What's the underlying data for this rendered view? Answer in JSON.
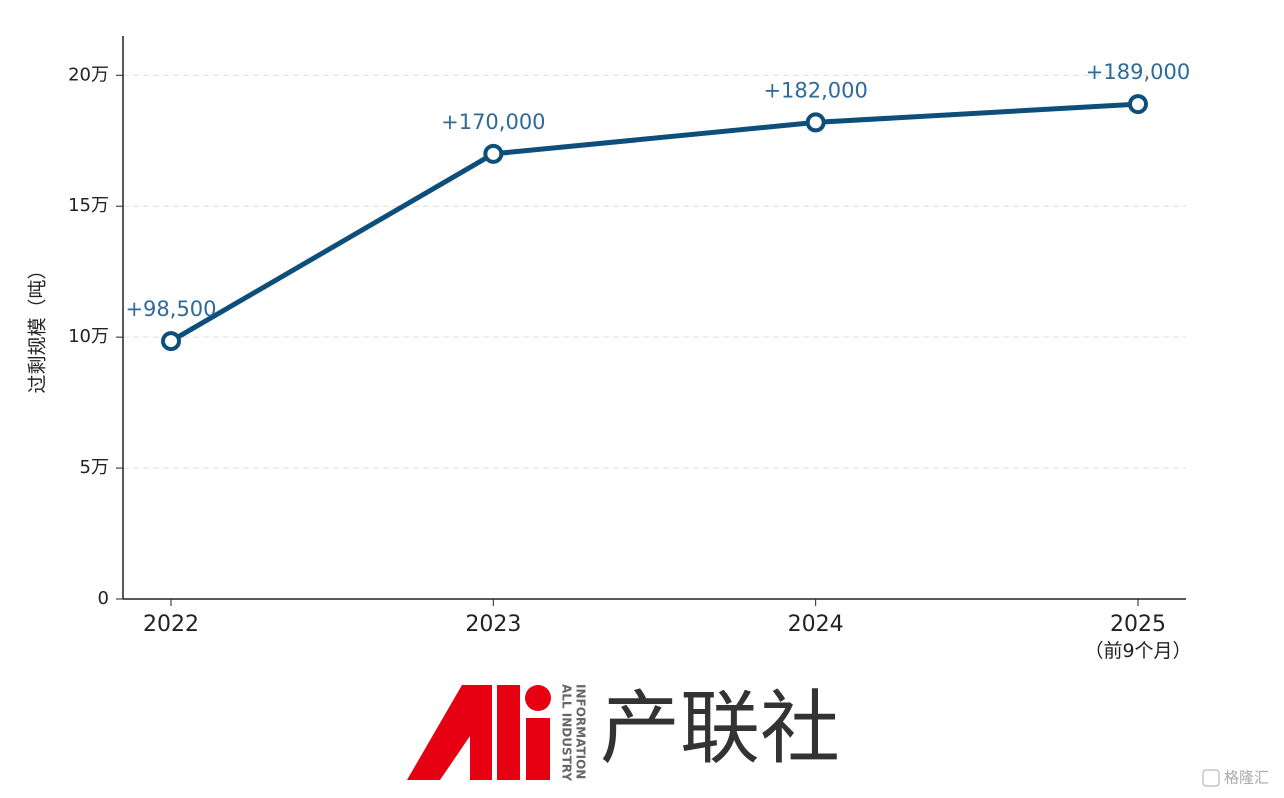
{
  "chart_data": {
    "type": "line",
    "y_label": "过剩规模（吨）",
    "categories": [
      "2022",
      "2023",
      "2024",
      "2025\n（前9个月）"
    ],
    "series": [
      {
        "name": "过剩规模",
        "color": "#0d4f7a",
        "values": [
          98500,
          170000,
          182000,
          189000
        ],
        "value_labels": [
          "+98,500",
          "+170,000",
          "+182,000",
          "+189,000"
        ]
      }
    ],
    "ylim": [
      0,
      215000
    ],
    "yticks": [
      0,
      {
        "value": 50000,
        "label": "5万"
      },
      {
        "value": 100000,
        "label": "10万"
      },
      {
        "value": 150000,
        "label": "15万"
      },
      {
        "value": 200000,
        "label": "20万"
      }
    ],
    "grid": true
  },
  "logo": {
    "name": "产联社",
    "tagline": [
      "ALL INDUSTRY",
      "INFORMATION"
    ]
  },
  "watermark": "格隆汇"
}
